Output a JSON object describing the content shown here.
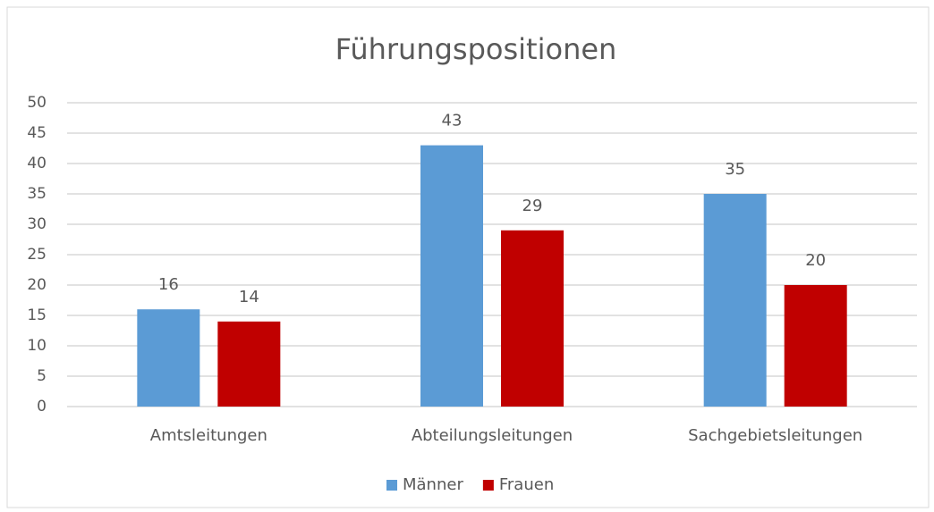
{
  "chart_data": {
    "type": "bar",
    "title": "Führungspositionen",
    "categories": [
      "Amtsleitungen",
      "Abteilungsleitungen",
      "Sachgebietsleitungen"
    ],
    "series": [
      {
        "name": "Männer",
        "color": "#5b9bd5",
        "values": [
          16,
          43,
          35
        ]
      },
      {
        "name": "Frauen",
        "color": "#c00000",
        "values": [
          14,
          29,
          20
        ]
      }
    ],
    "ylim": [
      0,
      50
    ],
    "yticks": [
      0,
      5,
      10,
      15,
      20,
      25,
      30,
      35,
      40,
      45,
      50
    ],
    "grid": true,
    "legend": "bottom"
  }
}
